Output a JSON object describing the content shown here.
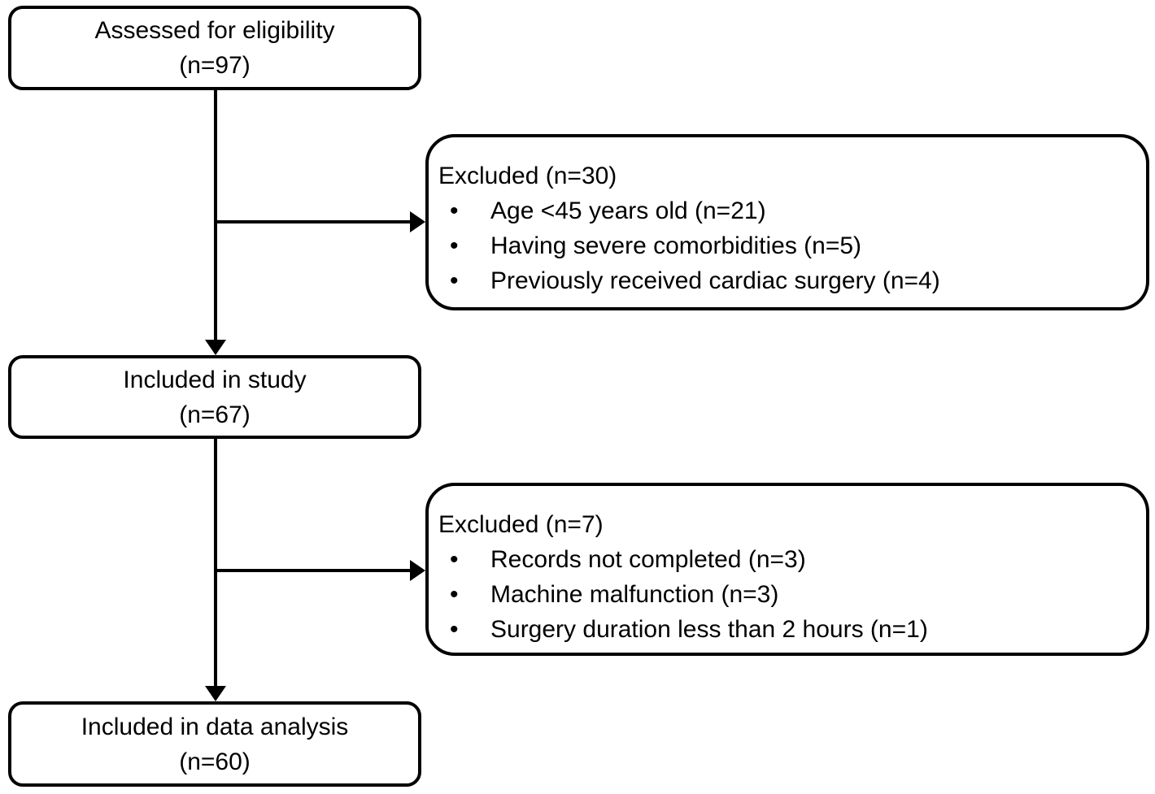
{
  "flowchart": {
    "bullet_glyph": "•",
    "colors": {
      "line": "#000000",
      "background": "#ffffff",
      "text": "#000000"
    },
    "boxes": {
      "assessed": {
        "line1": "Assessed for eligibility",
        "line2": "(n=97)"
      },
      "excluded1": {
        "title": "Excluded (n=30)",
        "items": [
          "Age <45 years old (n=21)",
          "Having severe comorbidities (n=5)",
          "Previously received cardiac surgery (n=4)"
        ]
      },
      "included_study": {
        "line1": "Included in study",
        "line2": "(n=67)"
      },
      "excluded2": {
        "title": "Excluded (n=7)",
        "items": [
          "Records not completed (n=3)",
          "Machine malfunction (n=3)",
          "Surgery duration less than 2 hours (n=1)"
        ]
      },
      "included_analysis": {
        "line1": "Included in data analysis",
        "line2": "(n=60)"
      }
    }
  }
}
